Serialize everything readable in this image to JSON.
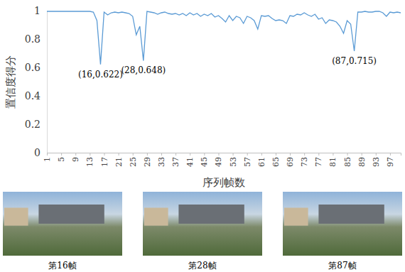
{
  "chart_data": {
    "type": "line",
    "y_label": "置信度得分",
    "x_label": "序列帧数",
    "x": [
      1,
      2,
      3,
      4,
      5,
      6,
      7,
      8,
      9,
      10,
      11,
      12,
      13,
      14,
      15,
      16,
      17,
      18,
      19,
      20,
      21,
      22,
      23,
      24,
      25,
      26,
      27,
      28,
      29,
      30,
      31,
      32,
      33,
      34,
      35,
      36,
      37,
      38,
      39,
      40,
      41,
      42,
      43,
      44,
      45,
      46,
      47,
      48,
      49,
      50,
      51,
      52,
      53,
      54,
      55,
      56,
      57,
      58,
      59,
      60,
      61,
      62,
      63,
      64,
      65,
      66,
      67,
      68,
      69,
      70,
      71,
      72,
      73,
      74,
      75,
      76,
      77,
      78,
      79,
      80,
      81,
      82,
      83,
      84,
      85,
      86,
      87,
      88,
      89,
      90,
      91,
      92,
      93,
      94,
      95,
      96,
      97,
      98,
      99,
      100
    ],
    "values": [
      0.995,
      0.995,
      0.995,
      0.995,
      0.995,
      0.995,
      0.995,
      0.995,
      0.995,
      0.995,
      0.995,
      0.995,
      0.995,
      0.99,
      0.93,
      0.622,
      0.99,
      0.97,
      0.985,
      0.99,
      0.985,
      0.99,
      0.985,
      0.98,
      0.96,
      0.83,
      0.89,
      0.648,
      0.995,
      0.99,
      0.985,
      0.975,
      0.985,
      0.99,
      0.98,
      0.975,
      0.98,
      0.97,
      0.98,
      0.965,
      0.985,
      0.97,
      0.98,
      0.96,
      0.975,
      0.965,
      0.98,
      0.955,
      0.965,
      0.945,
      0.92,
      0.965,
      0.93,
      0.96,
      0.95,
      0.91,
      0.96,
      0.95,
      0.93,
      0.87,
      0.965,
      0.96,
      0.965,
      0.945,
      0.93,
      0.935,
      0.93,
      0.91,
      0.965,
      0.96,
      0.975,
      0.97,
      0.985,
      0.97,
      0.96,
      0.975,
      0.94,
      0.95,
      0.91,
      0.935,
      0.93,
      0.92,
      0.89,
      0.84,
      0.93,
      0.905,
      0.715,
      0.99,
      0.99,
      0.995,
      0.99,
      0.99,
      0.995,
      0.995,
      0.985,
      0.96,
      0.99,
      0.985,
      0.99,
      0.985
    ],
    "color": "#5b9bd5",
    "xlim": [
      1,
      100
    ],
    "xticks": [
      1,
      5,
      9,
      13,
      17,
      21,
      25,
      29,
      33,
      37,
      41,
      45,
      49,
      53,
      57,
      61,
      65,
      69,
      73,
      77,
      81,
      85,
      89,
      93,
      97
    ],
    "ylim": [
      0,
      1
    ],
    "yticks": [
      0,
      0.2,
      0.4,
      0.6,
      0.8,
      1
    ],
    "grid": false,
    "annotations": [
      {
        "text": "(16,0.622)",
        "x": 16,
        "y": 0.622
      },
      {
        "text": "(28,0.648)",
        "x": 28,
        "y": 0.648
      },
      {
        "text": "(87,0.715)",
        "x": 87,
        "y": 0.715
      }
    ]
  },
  "frames": [
    {
      "caption": "第16帧"
    },
    {
      "caption": "第28帧"
    },
    {
      "caption": "第87帧"
    }
  ]
}
